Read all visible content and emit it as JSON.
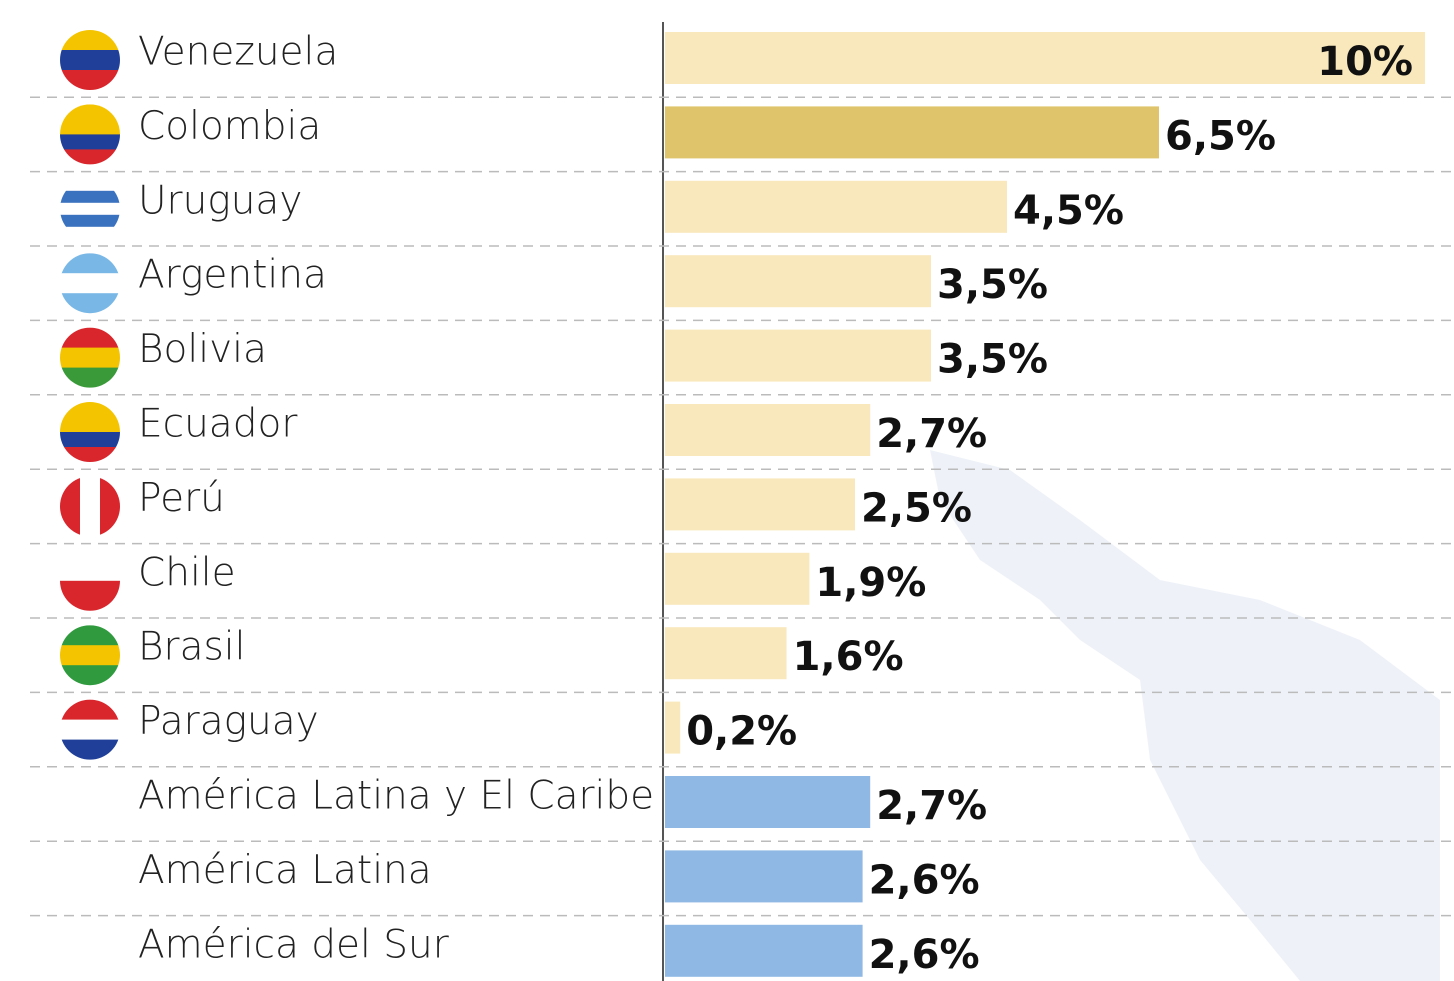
{
  "chart_data": {
    "type": "bar",
    "orientation": "horizontal",
    "categories": [
      "Venezuela",
      "Colombia",
      "Uruguay",
      "Argentina",
      "Bolivia",
      "Ecuador",
      "Perú",
      "Chile",
      "Brasil",
      "Paraguay",
      "América Latina y El Caribe",
      "América Latina",
      "América del Sur"
    ],
    "values": [
      10,
      6.5,
      4.5,
      3.5,
      3.5,
      2.7,
      2.5,
      1.9,
      1.6,
      0.2,
      2.7,
      2.6,
      2.6
    ],
    "value_labels": [
      "10%",
      "6,5%",
      "4,5%",
      "3,5%",
      "3,5%",
      "2,7%",
      "2,5%",
      "1,9%",
      "1,6%",
      "0,2%",
      "2,7%",
      "2,6%",
      "2,6%"
    ],
    "colors": [
      "#f8e8bc",
      "#dfc46c",
      "#f8e8bc",
      "#f8e8bc",
      "#f8e8bc",
      "#f8e8bc",
      "#f8e8bc",
      "#f8e8bc",
      "#f8e8bc",
      "#f8e8bc",
      "#8fb9e4",
      "#8fb9e4",
      "#8fb9e4"
    ],
    "highlight": "Colombia",
    "xlim": [
      0,
      10
    ],
    "grid": true
  }
}
